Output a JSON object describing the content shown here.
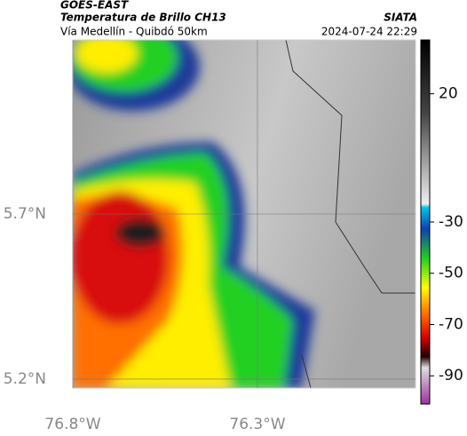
{
  "header": {
    "title": "GOES-EAST",
    "subtitle": "Temperatura de Brillo CH13",
    "route": "Vía Medellín - Quibdó 50km",
    "source": "SIATA",
    "datetime": "2024-07-24 22:29"
  },
  "map": {
    "xlim": [
      -76.8,
      -75.872
    ],
    "ylim": [
      5.173,
      6.227
    ],
    "xticks": [
      {
        "value": -76.8,
        "label": "76.8°W"
      },
      {
        "value": -76.3,
        "label": "76.3°W"
      }
    ],
    "yticks": [
      {
        "value": 5.2,
        "label": "5.2°N"
      },
      {
        "value": 5.7,
        "label": "5.7°N"
      }
    ]
  },
  "colorbar": {
    "lim": [
      -101,
      41
    ],
    "ticks": [
      20,
      -30,
      -50,
      -70,
      -90
    ]
  }
}
